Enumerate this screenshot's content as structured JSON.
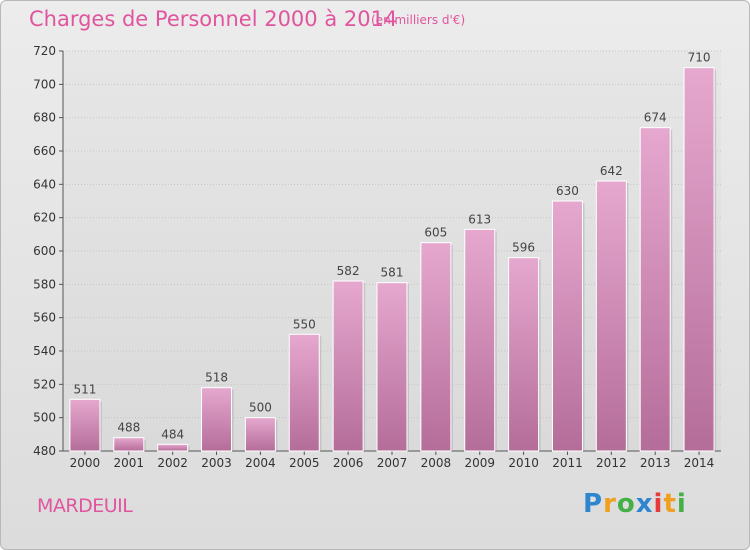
{
  "chart_data": {
    "type": "bar",
    "title": "Charges de Personnel 2000 à 2014",
    "subtitle": "(en milliers d'€)",
    "categories": [
      "2000",
      "2001",
      "2002",
      "2003",
      "2004",
      "2005",
      "2006",
      "2007",
      "2008",
      "2009",
      "2010",
      "2011",
      "2012",
      "2013",
      "2014"
    ],
    "values": [
      511,
      488,
      484,
      518,
      500,
      550,
      582,
      581,
      605,
      613,
      596,
      630,
      642,
      674,
      710
    ],
    "ylim": [
      480,
      720
    ],
    "yticks": [
      480,
      500,
      520,
      540,
      560,
      580,
      600,
      620,
      640,
      660,
      680,
      700,
      720
    ],
    "grid": true,
    "bar_color_top": "#e6a8cf",
    "bar_color_bottom": "#b46d99"
  },
  "footer": {
    "place": "MARDEUIL",
    "logo": {
      "p": "P",
      "r": "r",
      "o": "o",
      "x": "x",
      "i1": "i",
      "t": "t",
      "i2": "i"
    }
  }
}
